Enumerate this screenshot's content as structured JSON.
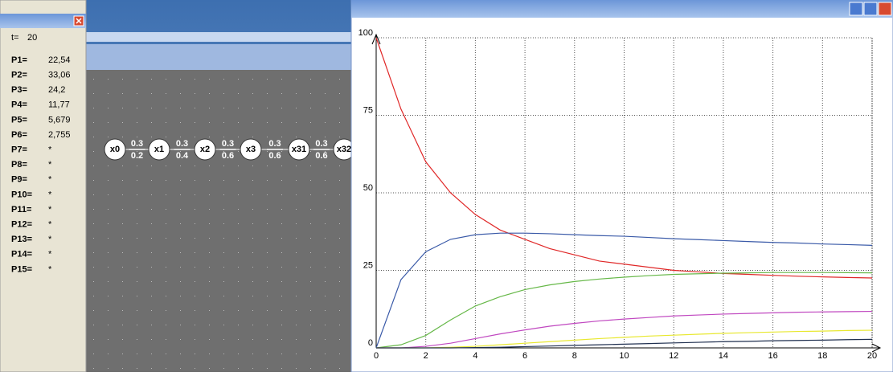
{
  "left_panel": {
    "t_label": "t=",
    "t_value": "20",
    "rows": [
      {
        "label": "P1=",
        "value": "22,54"
      },
      {
        "label": "P2=",
        "value": "33,06"
      },
      {
        "label": "P3=",
        "value": "24,2"
      },
      {
        "label": "P4=",
        "value": "11,77"
      },
      {
        "label": "P5=",
        "value": "5,679"
      },
      {
        "label": "P6=",
        "value": "2,755"
      },
      {
        "label": "P7=",
        "value": "*"
      },
      {
        "label": "P8=",
        "value": "*"
      },
      {
        "label": "P9=",
        "value": "*"
      },
      {
        "label": "P10=",
        "value": "*"
      },
      {
        "label": "P11=",
        "value": "*"
      },
      {
        "label": "P12=",
        "value": "*"
      },
      {
        "label": "P13=",
        "value": "*"
      },
      {
        "label": "P14=",
        "value": "*"
      },
      {
        "label": "P15=",
        "value": "*"
      }
    ]
  },
  "diagram": {
    "nodes": [
      "x0",
      "x1",
      "x2",
      "x3",
      "x31",
      "x32"
    ],
    "edges": [
      {
        "top": "0.3",
        "bottom": "0.2"
      },
      {
        "top": "0.3",
        "bottom": "0.4"
      },
      {
        "top": "0.3",
        "bottom": "0.6"
      },
      {
        "top": "0.3",
        "bottom": "0.6"
      },
      {
        "top": "0.3",
        "bottom": "0.6"
      }
    ]
  },
  "chart_data": {
    "type": "line",
    "x": [
      0,
      1,
      2,
      3,
      4,
      5,
      6,
      7,
      8,
      9,
      10,
      11,
      12,
      13,
      14,
      15,
      16,
      17,
      18,
      19,
      20
    ],
    "series": [
      {
        "color": "#e02828",
        "values": [
          100,
          77,
          60,
          50,
          43,
          38,
          35,
          32,
          30,
          28,
          27,
          26,
          25,
          24.5,
          24,
          23.7,
          23.4,
          23.1,
          22.9,
          22.7,
          22.54
        ]
      },
      {
        "color": "#3a5aa8",
        "values": [
          0,
          22,
          31,
          35,
          36.5,
          37,
          37,
          36.8,
          36.5,
          36.2,
          36,
          35.6,
          35.2,
          34.9,
          34.6,
          34.3,
          34,
          33.8,
          33.5,
          33.3,
          33.06
        ]
      },
      {
        "color": "#66b848",
        "values": [
          0,
          1,
          4,
          9,
          13.5,
          16.5,
          18.8,
          20.3,
          21.4,
          22.2,
          22.8,
          23.3,
          23.7,
          23.9,
          24.1,
          24.2,
          24.3,
          24.3,
          24.3,
          24.25,
          24.2
        ]
      },
      {
        "color": "#c048c0",
        "values": [
          0,
          0,
          0.5,
          1.5,
          3,
          4.5,
          5.8,
          7,
          7.9,
          8.7,
          9.3,
          9.8,
          10.3,
          10.6,
          10.9,
          11.1,
          11.3,
          11.5,
          11.6,
          11.7,
          11.77
        ]
      },
      {
        "color": "#e8e830",
        "values": [
          0,
          0,
          0,
          0.2,
          0.5,
          1,
          1.5,
          2,
          2.5,
          3,
          3.4,
          3.8,
          4.1,
          4.4,
          4.7,
          4.9,
          5.1,
          5.3,
          5.4,
          5.6,
          5.679
        ]
      },
      {
        "color": "#203050",
        "values": [
          0,
          0,
          0,
          0,
          0.1,
          0.2,
          0.4,
          0.6,
          0.8,
          1,
          1.2,
          1.4,
          1.6,
          1.8,
          2,
          2.1,
          2.3,
          2.4,
          2.5,
          2.65,
          2.755
        ]
      }
    ],
    "xlim": [
      0,
      20
    ],
    "ylim": [
      0,
      100
    ],
    "xticks": [
      0,
      2,
      4,
      6,
      8,
      10,
      12,
      14,
      16,
      18,
      20
    ],
    "yticks": [
      0,
      25,
      50,
      75,
      100
    ],
    "grid": true
  }
}
